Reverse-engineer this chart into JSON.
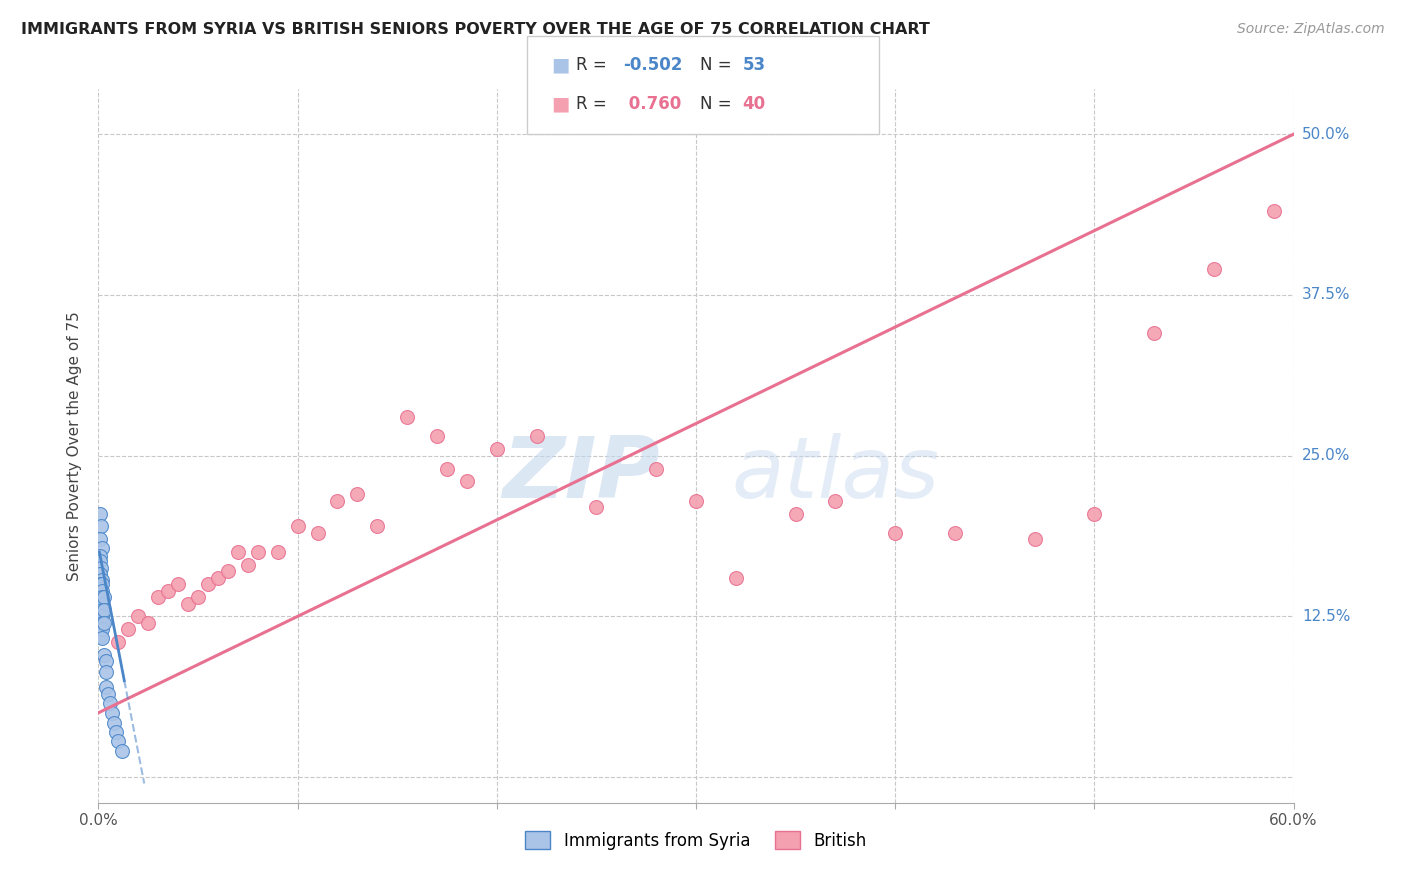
{
  "title": "IMMIGRANTS FROM SYRIA VS BRITISH SENIORS POVERTY OVER THE AGE OF 75 CORRELATION CHART",
  "source": "Source: ZipAtlas.com",
  "ylabel": "Seniors Poverty Over the Age of 75",
  "xlim": [
    0,
    0.6
  ],
  "ylim": [
    -0.02,
    0.535
  ],
  "yticks": [
    0.0,
    0.125,
    0.25,
    0.375,
    0.5
  ],
  "ytick_labels": [
    "",
    "12.5%",
    "25.0%",
    "37.5%",
    "50.0%"
  ],
  "xticks": [
    0.0,
    0.1,
    0.2,
    0.3,
    0.4,
    0.5,
    0.6
  ],
  "xtick_labels": [
    "0.0%",
    "",
    "",
    "",
    "",
    "",
    "60.0%"
  ],
  "color_syria": "#aac4e8",
  "color_british": "#f4a0b0",
  "color_syria_line": "#4a86c8",
  "color_british_line": "#e87090",
  "color_r_syria": "#4a86c8",
  "color_r_british": "#e87090",
  "color_grid": "#c8c8c8",
  "watermark_zip": "ZIP",
  "watermark_atlas": "atlas",
  "syria_x": [
    0.001,
    0.0015,
    0.001,
    0.002,
    0.001,
    0.001,
    0.0015,
    0.001,
    0.002,
    0.001,
    0.001,
    0.001,
    0.001,
    0.001,
    0.001,
    0.001,
    0.001,
    0.001,
    0.001,
    0.001,
    0.001,
    0.001,
    0.001,
    0.001,
    0.001,
    0.001,
    0.001,
    0.001,
    0.001,
    0.001,
    0.002,
    0.002,
    0.002,
    0.002,
    0.002,
    0.002,
    0.002,
    0.002,
    0.002,
    0.003,
    0.003,
    0.003,
    0.003,
    0.004,
    0.004,
    0.004,
    0.005,
    0.006,
    0.007,
    0.008,
    0.009,
    0.01,
    0.012
  ],
  "syria_y": [
    0.205,
    0.195,
    0.185,
    0.178,
    0.172,
    0.168,
    0.163,
    0.158,
    0.153,
    0.15,
    0.148,
    0.146,
    0.144,
    0.142,
    0.14,
    0.138,
    0.136,
    0.134,
    0.132,
    0.13,
    0.128,
    0.126,
    0.124,
    0.122,
    0.12,
    0.118,
    0.116,
    0.114,
    0.112,
    0.11,
    0.15,
    0.145,
    0.14,
    0.135,
    0.13,
    0.125,
    0.12,
    0.115,
    0.108,
    0.14,
    0.13,
    0.12,
    0.095,
    0.09,
    0.082,
    0.07,
    0.065,
    0.058,
    0.05,
    0.042,
    0.035,
    0.028,
    0.02
  ],
  "british_x": [
    0.01,
    0.015,
    0.02,
    0.025,
    0.03,
    0.035,
    0.04,
    0.045,
    0.05,
    0.055,
    0.06,
    0.065,
    0.07,
    0.075,
    0.08,
    0.09,
    0.1,
    0.11,
    0.12,
    0.13,
    0.14,
    0.155,
    0.17,
    0.175,
    0.185,
    0.2,
    0.22,
    0.25,
    0.28,
    0.3,
    0.32,
    0.35,
    0.37,
    0.4,
    0.43,
    0.47,
    0.5,
    0.53,
    0.56,
    0.59
  ],
  "british_y": [
    0.105,
    0.115,
    0.125,
    0.12,
    0.14,
    0.145,
    0.15,
    0.135,
    0.14,
    0.15,
    0.155,
    0.16,
    0.175,
    0.165,
    0.175,
    0.175,
    0.195,
    0.19,
    0.215,
    0.22,
    0.195,
    0.28,
    0.265,
    0.24,
    0.23,
    0.255,
    0.265,
    0.21,
    0.24,
    0.215,
    0.155,
    0.205,
    0.215,
    0.19,
    0.19,
    0.185,
    0.205,
    0.345,
    0.395,
    0.44
  ],
  "british_line_x0": 0.0,
  "british_line_y0": 0.05,
  "british_line_x1": 0.6,
  "british_line_y1": 0.5,
  "syria_line_x0": 0.0005,
  "syria_line_y0": 0.175,
  "syria_line_x1": 0.013,
  "syria_line_y1": 0.075
}
